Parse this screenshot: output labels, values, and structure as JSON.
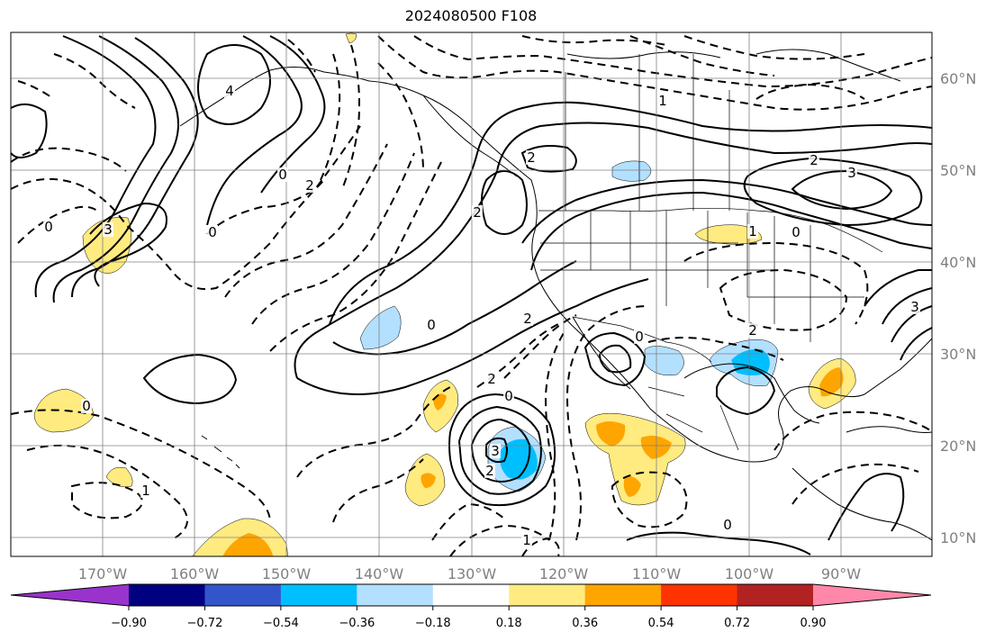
{
  "title": "2024080500 F108",
  "map": {
    "lon_labels": [
      "170°W",
      "160°W",
      "150°W",
      "140°W",
      "130°W",
      "120°W",
      "110°W",
      "100°W",
      "90°W"
    ],
    "lat_labels": [
      "60°N",
      "50°N",
      "40°N",
      "30°N",
      "20°N",
      "10°N"
    ],
    "contour_labels": [
      "0",
      "0",
      "0",
      "0",
      "0",
      "0",
      "0",
      "0",
      "0",
      "1",
      "1",
      "1",
      "1",
      "2",
      "2",
      "2",
      "2",
      "2",
      "2",
      "2",
      "2",
      "3",
      "3",
      "3",
      "3",
      "4"
    ],
    "colors": {
      "border": "#000000",
      "grid": "#808080",
      "label": "#808080",
      "fill_pos1": "#ffeb80",
      "fill_pos2": "#ffa500",
      "fill_neg1": "#b3e0ff",
      "fill_neg2": "#00bfff"
    }
  },
  "colorbar": {
    "ticks": [
      "−0.90",
      "−0.72",
      "−0.54",
      "−0.36",
      "−0.18",
      "0.18",
      "0.36",
      "0.54",
      "0.72",
      "0.90"
    ],
    "colors": [
      "#9933cc",
      "#000080",
      "#3355cc",
      "#00bfff",
      "#b3e0ff",
      "#ffffff",
      "#ffeb80",
      "#ffa500",
      "#ff3300",
      "#b22222",
      "#ff88aa"
    ]
  }
}
